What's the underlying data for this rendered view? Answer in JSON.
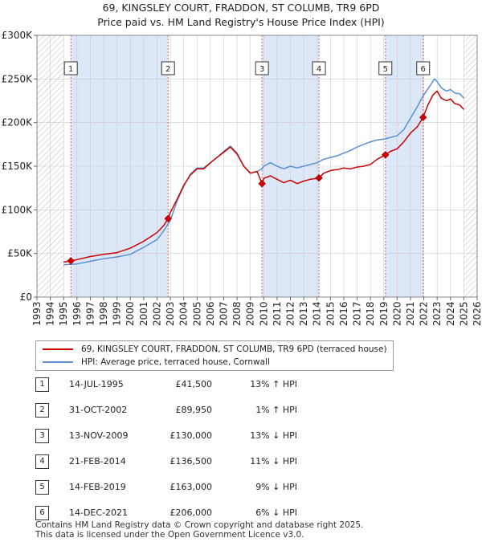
{
  "title_line1": "69, KINGSLEY COURT, FRADDON, ST COLUMB, TR9 6PD",
  "title_line2": "Price paid vs. HM Land Registry's House Price Index (HPI)",
  "colors": {
    "price_paid": "#cc0000",
    "hpi": "#5b8fd6",
    "shade": "#dce8f8",
    "grid": "#cccccc"
  },
  "chart_data": {
    "type": "line",
    "title": "Price paid vs. HM Land Registry's House Price Index (HPI)",
    "xlabel": "",
    "ylabel": "",
    "xlim": [
      1993,
      2026
    ],
    "ylim": [
      0,
      300000
    ],
    "x_ticks": [
      1993,
      1994,
      1995,
      1996,
      1997,
      1998,
      1999,
      2000,
      2001,
      2002,
      2003,
      2004,
      2005,
      2006,
      2007,
      2008,
      2009,
      2010,
      2011,
      2012,
      2013,
      2014,
      2015,
      2016,
      2017,
      2018,
      2019,
      2020,
      2021,
      2022,
      2023,
      2024,
      2025,
      2026
    ],
    "y_ticks": [
      0,
      50000,
      100000,
      150000,
      200000,
      250000,
      300000
    ],
    "y_tick_labels": [
      "£0",
      "£50K",
      "£100K",
      "£150K",
      "£200K",
      "£250K",
      "£300K"
    ],
    "grid": true,
    "shaded_periods": [
      [
        1995.54,
        2002.83
      ],
      [
        2009.87,
        2014.14
      ],
      [
        2019.12,
        2021.95
      ]
    ],
    "hatched_ranges": [
      [
        1993,
        1995.0
      ],
      [
        2025.0,
        2026
      ]
    ],
    "series": [
      {
        "name": "69, KINGSLEY COURT, FRADDON, ST COLUMB, TR9 6PD (terraced house)",
        "color": "#cc0000",
        "x": [
          1995.0,
          1995.54,
          1996.0,
          1997.0,
          1998.0,
          1999.0,
          2000.0,
          2001.0,
          2002.0,
          2002.5,
          2002.83,
          2003.0,
          2003.5,
          2004.0,
          2004.5,
          2005.0,
          2005.5,
          2006.0,
          2006.5,
          2007.0,
          2007.5,
          2008.0,
          2008.5,
          2009.0,
          2009.5,
          2009.87,
          2010.0,
          2010.5,
          2011.0,
          2011.5,
          2012.0,
          2012.5,
          2013.0,
          2013.5,
          2014.14,
          2014.5,
          2015.0,
          2015.5,
          2016.0,
          2016.5,
          2017.0,
          2017.5,
          2018.0,
          2018.5,
          2019.12,
          2019.5,
          2020.0,
          2020.5,
          2021.0,
          2021.5,
          2021.95,
          2022.3,
          2022.7,
          2023.0,
          2023.3,
          2023.7,
          2024.0,
          2024.3,
          2024.7,
          2025.0
        ],
        "values": [
          40000,
          41500,
          43000,
          46500,
          49000,
          51000,
          56000,
          64000,
          74000,
          82000,
          89950,
          97000,
          112000,
          128000,
          140000,
          147000,
          147000,
          154000,
          160000,
          166000,
          172000,
          164000,
          150000,
          142000,
          144000,
          130000,
          136000,
          139000,
          135000,
          131000,
          134000,
          130000,
          133000,
          135000,
          136500,
          142000,
          145000,
          146000,
          148000,
          147000,
          149000,
          150000,
          152000,
          158000,
          163000,
          167000,
          170000,
          178000,
          188000,
          195000,
          206000,
          220000,
          232000,
          236000,
          228000,
          225000,
          227000,
          222000,
          220000,
          215000
        ]
      },
      {
        "name": "HPI: Average price, terraced house, Cornwall",
        "color": "#5b8fd6",
        "x": [
          1995.0,
          1996.0,
          1997.0,
          1998.0,
          1999.0,
          2000.0,
          2001.0,
          2002.0,
          2002.5,
          2003.0,
          2003.5,
          2004.0,
          2004.5,
          2005.0,
          2005.5,
          2006.0,
          2006.5,
          2007.0,
          2007.5,
          2008.0,
          2008.5,
          2009.0,
          2009.5,
          2009.87,
          2010.0,
          2010.5,
          2011.0,
          2011.5,
          2012.0,
          2012.5,
          2013.0,
          2013.5,
          2014.0,
          2014.5,
          2015.0,
          2015.5,
          2016.0,
          2016.5,
          2017.0,
          2017.5,
          2018.0,
          2018.5,
          2019.0,
          2019.5,
          2020.0,
          2020.5,
          2021.0,
          2021.5,
          2022.0,
          2022.5,
          2022.8,
          2023.0,
          2023.3,
          2023.7,
          2024.0,
          2024.3,
          2024.7,
          2025.0
        ],
        "values": [
          37000,
          38000,
          41000,
          44000,
          46000,
          49000,
          57000,
          66000,
          76000,
          88000,
          110000,
          127000,
          141000,
          148000,
          148000,
          154000,
          160000,
          167000,
          173000,
          165000,
          150000,
          142000,
          144000,
          147000,
          150000,
          154000,
          150000,
          147000,
          150000,
          148000,
          150000,
          152000,
          154000,
          158000,
          160000,
          162000,
          165000,
          168000,
          172000,
          175000,
          178000,
          180000,
          181000,
          183000,
          185000,
          192000,
          205000,
          218000,
          232000,
          243000,
          250000,
          247000,
          240000,
          236000,
          238000,
          234000,
          233000,
          228000
        ]
      }
    ],
    "sales": [
      {
        "num": "1",
        "x": 1995.54,
        "value": 41500
      },
      {
        "num": "2",
        "x": 2002.83,
        "value": 89950
      },
      {
        "num": "3",
        "x": 2009.87,
        "value": 130000
      },
      {
        "num": "4",
        "x": 2014.14,
        "value": 136500
      },
      {
        "num": "5",
        "x": 2019.12,
        "value": 163000
      },
      {
        "num": "6",
        "x": 2021.95,
        "value": 206000
      }
    ]
  },
  "legend": {
    "item1": "69, KINGSLEY COURT, FRADDON, ST COLUMB, TR9 6PD (terraced house)",
    "item2": "HPI: Average price, terraced house, Cornwall"
  },
  "sales_table": [
    {
      "num": "1",
      "date": "14-JUL-1995",
      "price": "£41,500",
      "hpi": "13% ↑ HPI"
    },
    {
      "num": "2",
      "date": "31-OCT-2002",
      "price": "£89,950",
      "hpi": "1% ↑ HPI"
    },
    {
      "num": "3",
      "date": "13-NOV-2009",
      "price": "£130,000",
      "hpi": "13% ↓ HPI"
    },
    {
      "num": "4",
      "date": "21-FEB-2014",
      "price": "£136,500",
      "hpi": "11% ↓ HPI"
    },
    {
      "num": "5",
      "date": "14-FEB-2019",
      "price": "£163,000",
      "hpi": "9% ↓ HPI"
    },
    {
      "num": "6",
      "date": "14-DEC-2021",
      "price": "£206,000",
      "hpi": "6% ↓ HPI"
    }
  ],
  "footer": {
    "line1": "Contains HM Land Registry data © Crown copyright and database right 2025.",
    "line2": "This data is licensed under the Open Government Licence v3.0."
  }
}
